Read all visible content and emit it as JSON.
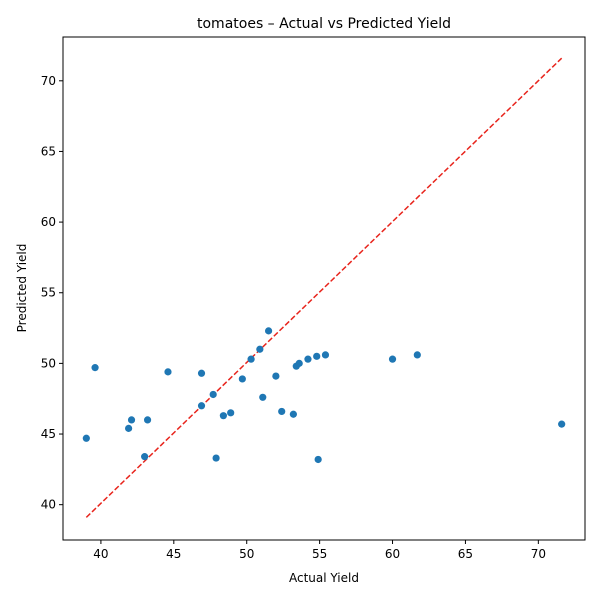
{
  "chart_data": {
    "type": "scatter",
    "title": "tomatoes – Actual vs Predicted Yield",
    "xlabel": "Actual Yield",
    "ylabel": "Predicted Yield",
    "xlim": [
      37.4,
      73.2
    ],
    "ylim": [
      37.5,
      73.1
    ],
    "xticks": [
      40,
      45,
      50,
      55,
      60,
      65,
      70
    ],
    "yticks": [
      40,
      45,
      50,
      55,
      60,
      65,
      70
    ],
    "grid": false,
    "point_color": "#1f77b4",
    "reference_line": {
      "from": [
        39.0,
        39.1
      ],
      "to": [
        71.6,
        71.6
      ],
      "color": "#e8241c",
      "style": "dashed"
    },
    "series": [
      {
        "points": [
          [
            39.0,
            44.7
          ],
          [
            39.6,
            49.7
          ],
          [
            41.9,
            45.4
          ],
          [
            42.1,
            46.0
          ],
          [
            43.0,
            43.4
          ],
          [
            43.2,
            46.0
          ],
          [
            44.6,
            49.4
          ],
          [
            46.9,
            49.3
          ],
          [
            46.9,
            47.0
          ],
          [
            47.7,
            47.8
          ],
          [
            47.9,
            43.3
          ],
          [
            48.4,
            46.3
          ],
          [
            48.9,
            46.5
          ],
          [
            49.7,
            48.9
          ],
          [
            50.3,
            50.3
          ],
          [
            50.9,
            51.0
          ],
          [
            51.1,
            47.6
          ],
          [
            51.5,
            52.3
          ],
          [
            52.0,
            49.1
          ],
          [
            52.4,
            46.6
          ],
          [
            53.2,
            46.4
          ],
          [
            53.4,
            49.8
          ],
          [
            53.6,
            50.0
          ],
          [
            54.2,
            50.3
          ],
          [
            54.8,
            50.5
          ],
          [
            54.9,
            43.2
          ],
          [
            55.4,
            50.6
          ],
          [
            60.0,
            50.3
          ],
          [
            61.7,
            50.6
          ],
          [
            71.6,
            45.7
          ]
        ]
      }
    ]
  }
}
